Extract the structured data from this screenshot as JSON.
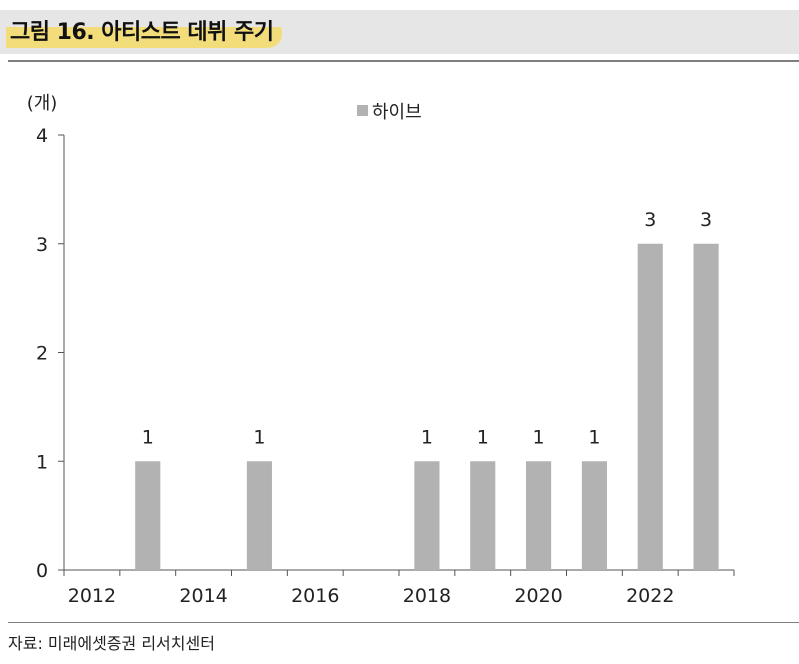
{
  "header": {
    "title": "그림 16. 아티스트 데뷔 주기"
  },
  "footer": {
    "source": "자료: 미래에셋증권 리서치센터"
  },
  "colors": {
    "bar": "#b2b2b2",
    "title_highlight": "#f3dc7a",
    "title_band": "#e6e6e6"
  },
  "chart_data": {
    "type": "bar",
    "unit_label": "(개)",
    "categories": [
      "2012",
      "2013",
      "2014",
      "2015",
      "2016",
      "2017",
      "2018",
      "2019",
      "2020",
      "2021",
      "2022",
      "2023"
    ],
    "x_tick_labels": [
      "2012",
      "2014",
      "2016",
      "2018",
      "2020",
      "2022"
    ],
    "series": [
      {
        "name": "하이브",
        "values": [
          0,
          1,
          0,
          1,
          0,
          0,
          1,
          1,
          1,
          1,
          3,
          3
        ]
      }
    ],
    "data_labels": [
      "",
      "1",
      "",
      "1",
      "",
      "",
      "1",
      "1",
      "1",
      "1",
      "3",
      "3"
    ],
    "y_ticks": [
      "0",
      "1",
      "2",
      "3",
      "4"
    ],
    "ylim": [
      0,
      4
    ],
    "legend_position": "top-center",
    "grid": false
  }
}
